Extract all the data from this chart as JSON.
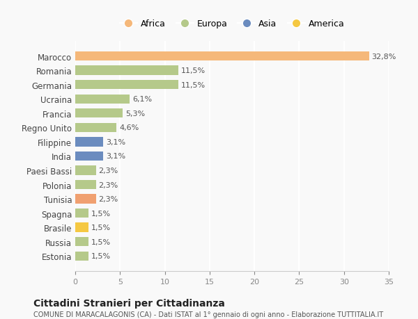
{
  "countries": [
    "Estonia",
    "Russia",
    "Brasile",
    "Spagna",
    "Tunisia",
    "Polonia",
    "Paesi Bassi",
    "India",
    "Filippine",
    "Regno Unito",
    "Francia",
    "Ucraina",
    "Germania",
    "Romania",
    "Marocco"
  ],
  "values": [
    1.5,
    1.5,
    1.5,
    1.5,
    2.3,
    2.3,
    2.3,
    3.1,
    3.1,
    4.6,
    5.3,
    6.1,
    11.5,
    11.5,
    32.8
  ],
  "labels": [
    "1,5%",
    "1,5%",
    "1,5%",
    "1,5%",
    "2,3%",
    "2,3%",
    "2,3%",
    "3,1%",
    "3,1%",
    "4,6%",
    "5,3%",
    "6,1%",
    "11,5%",
    "11,5%",
    "32,8%"
  ],
  "colors": [
    "#b5c98a",
    "#b5c98a",
    "#f5c842",
    "#b5c98a",
    "#f0a070",
    "#b5c98a",
    "#b5c98a",
    "#6b8cbf",
    "#6b8cbf",
    "#b5c98a",
    "#b5c98a",
    "#b5c98a",
    "#b5c98a",
    "#b5c98a",
    "#f5b87a"
  ],
  "legend_labels": [
    "Africa",
    "Europa",
    "Asia",
    "America"
  ],
  "legend_colors": [
    "#f5b87a",
    "#b5c98a",
    "#6b8cbf",
    "#f5c842"
  ],
  "title": "Cittadini Stranieri per Cittadinanza",
  "subtitle": "COMUNE DI MARACALAGONIS (CA) - Dati ISTAT al 1° gennaio di ogni anno - Elaborazione TUTTITALIA.IT",
  "xlim": [
    0,
    35
  ],
  "xticks": [
    0,
    5,
    10,
    15,
    20,
    25,
    30,
    35
  ],
  "background_color": "#f9f9f9",
  "grid_color": "#ffffff",
  "bar_height": 0.65
}
